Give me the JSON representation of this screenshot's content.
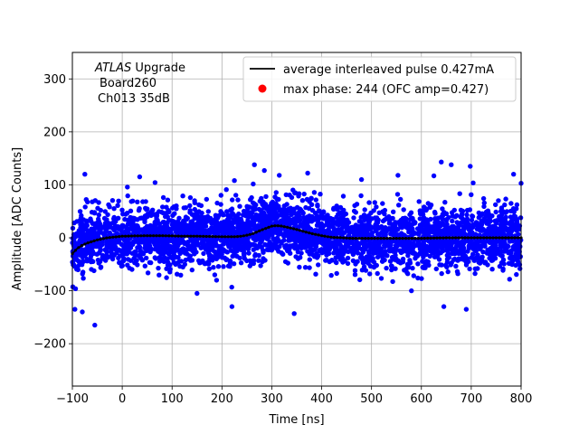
{
  "chart_data": {
    "type": "scatter",
    "title": "",
    "xlabel": "Time [ns]",
    "ylabel": "Amplitude [ADC Counts]",
    "xlim": [
      -100,
      800
    ],
    "ylim": [
      -280,
      350
    ],
    "xticks": [
      -100,
      0,
      100,
      200,
      300,
      400,
      500,
      600,
      700,
      800
    ],
    "yticks": [
      -200,
      -100,
      0,
      100,
      200,
      300
    ],
    "xtick_labels": [
      "−100",
      "0",
      "100",
      "200",
      "300",
      "400",
      "500",
      "600",
      "700",
      "800"
    ],
    "ytick_labels": [
      "−200",
      "−100",
      "0",
      "100",
      "200",
      "300"
    ],
    "grid": true,
    "legend_position": "top-right",
    "annotation": {
      "line1_italic": "ATLAS",
      "line1_rest": " Upgrade",
      "line2": "Board260",
      "line3": "Ch013 35dB"
    },
    "series": [
      {
        "name": "average interleaved pulse 0.427mA",
        "kind": "line",
        "color": "#000000",
        "x": [
          -100,
          -90,
          -80,
          -70,
          -60,
          -50,
          -40,
          -30,
          -20,
          -10,
          0,
          25,
          50,
          75,
          100,
          125,
          150,
          175,
          200,
          225,
          240,
          260,
          280,
          300,
          310,
          320,
          340,
          360,
          380,
          400,
          420,
          440,
          460,
          480,
          500,
          550,
          600,
          650,
          700,
          750,
          800
        ],
        "y": [
          -30,
          -20,
          -14,
          -10,
          -7,
          -4,
          -2,
          0,
          1,
          2,
          3,
          3.5,
          4,
          4,
          3.5,
          3,
          3,
          2.5,
          2,
          2,
          3,
          7,
          15,
          22,
          23,
          22,
          18,
          13,
          8,
          4,
          1,
          0,
          -1,
          -1,
          -1,
          -1,
          -1,
          0,
          0,
          0,
          0
        ]
      },
      {
        "name": "max phase: 244 (OFC amp=0.427)",
        "kind": "marker",
        "color": "#ff0000",
        "x": [],
        "y": []
      },
      {
        "name": "samples",
        "kind": "scatter",
        "color": "#0000ff",
        "x_range": [
          -100,
          800
        ],
        "y_spread_sigma": 28,
        "baseline": "average interleaved pulse 0.427mA",
        "outliers": [
          [
            -75,
            120
          ],
          [
            -55,
            -165
          ],
          [
            -80,
            -140
          ],
          [
            -95,
            -135
          ],
          [
            35,
            115
          ],
          [
            225,
            108
          ],
          [
            265,
            138
          ],
          [
            285,
            127
          ],
          [
            315,
            118
          ],
          [
            345,
            -143
          ],
          [
            372,
            122
          ],
          [
            553,
            118
          ],
          [
            625,
            117
          ],
          [
            640,
            143
          ],
          [
            660,
            138
          ],
          [
            698,
            135
          ],
          [
            580,
            -100
          ],
          [
            690,
            -135
          ],
          [
            645,
            -130
          ],
          [
            220,
            -130
          ],
          [
            785,
            120
          ],
          [
            800,
            103
          ],
          [
            480,
            110
          ],
          [
            150,
            -105
          ]
        ]
      }
    ]
  }
}
